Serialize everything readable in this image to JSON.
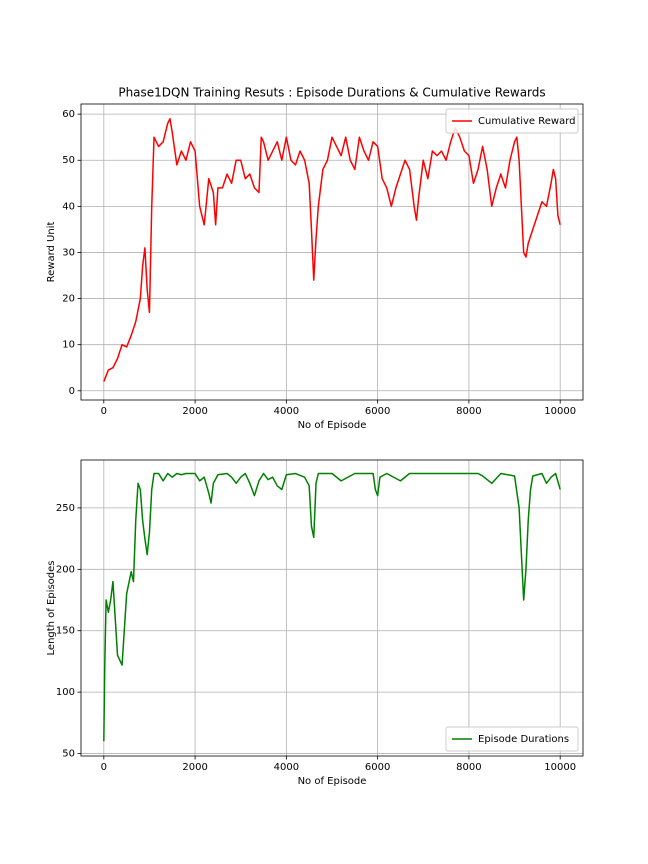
{
  "chart_data": [
    {
      "type": "line",
      "title": "Phase1DQN Training Resuts : Episode Durations & Cumulative Rewards",
      "x_label": "No of Episode",
      "y_label": "Reward Unit",
      "x": [
        0,
        100,
        200,
        300,
        400,
        500,
        600,
        700,
        800,
        850,
        900,
        950,
        1000,
        1050,
        1100,
        1200,
        1300,
        1400,
        1450,
        1500,
        1600,
        1700,
        1800,
        1900,
        2000,
        2100,
        2200,
        2300,
        2400,
        2450,
        2500,
        2600,
        2700,
        2800,
        2900,
        3000,
        3100,
        3200,
        3300,
        3400,
        3450,
        3500,
        3600,
        3700,
        3800,
        3900,
        4000,
        4100,
        4200,
        4300,
        4400,
        4500,
        4550,
        4600,
        4650,
        4700,
        4800,
        4900,
        5000,
        5100,
        5200,
        5300,
        5400,
        5500,
        5600,
        5700,
        5800,
        5900,
        6000,
        6100,
        6200,
        6300,
        6400,
        6500,
        6600,
        6700,
        6800,
        6850,
        6900,
        7000,
        7100,
        7200,
        7300,
        7400,
        7500,
        7600,
        7700,
        7800,
        7900,
        8000,
        8100,
        8200,
        8300,
        8400,
        8500,
        8600,
        8700,
        8800,
        8900,
        9000,
        9050,
        9100,
        9200,
        9250,
        9300,
        9400,
        9500,
        9600,
        9700,
        9800,
        9850,
        9900,
        9950,
        10000
      ],
      "series": [
        {
          "name": "Cumulative Reward",
          "color": "#ff0000",
          "values": [
            2,
            4.5,
            5,
            7,
            10,
            9.5,
            12,
            15,
            20,
            27,
            31,
            22,
            17,
            40,
            55,
            53,
            54,
            58,
            59,
            56,
            49,
            52,
            50,
            54,
            52,
            40,
            36,
            46,
            43,
            36,
            44,
            44,
            47,
            45,
            50,
            50,
            46,
            47,
            44,
            43,
            55,
            54,
            50,
            52,
            54,
            50,
            55,
            50,
            49,
            52,
            50,
            45,
            35,
            24,
            33,
            40,
            48,
            50,
            55,
            53,
            51,
            55,
            50,
            48,
            55,
            52,
            50,
            54,
            53,
            46,
            44,
            40,
            44,
            47,
            50,
            48,
            40,
            37,
            42,
            50,
            46,
            52,
            51,
            52,
            50,
            54,
            57,
            55,
            52,
            51,
            45,
            48,
            53,
            48,
            40,
            44,
            47,
            44,
            50,
            54,
            55,
            50,
            30,
            29,
            32,
            35,
            38,
            41,
            40,
            45,
            48,
            46,
            38,
            36
          ]
        }
      ],
      "xlim": [
        -500,
        10500
      ],
      "ylim": [
        -2,
        62.2
      ],
      "xticks": [
        0,
        2000,
        4000,
        6000,
        8000,
        10000
      ],
      "yticks": [
        0,
        10,
        20,
        30,
        40,
        50,
        60
      ],
      "grid": true,
      "legend": "upper right"
    },
    {
      "type": "line",
      "x_label": "No of Episode",
      "y_label": "Length of Episodes",
      "x": [
        0,
        20,
        50,
        100,
        150,
        200,
        250,
        300,
        400,
        500,
        600,
        650,
        700,
        750,
        800,
        850,
        900,
        950,
        1000,
        1050,
        1100,
        1200,
        1300,
        1400,
        1500,
        1600,
        1700,
        1800,
        2000,
        2100,
        2200,
        2300,
        2350,
        2400,
        2500,
        2700,
        2800,
        2900,
        3000,
        3100,
        3200,
        3300,
        3400,
        3500,
        3600,
        3700,
        3800,
        3900,
        4000,
        4200,
        4400,
        4500,
        4550,
        4600,
        4650,
        4700,
        5000,
        5200,
        5500,
        5900,
        5950,
        6000,
        6050,
        6200,
        6500,
        6700,
        7000,
        8200,
        8300,
        8500,
        8700,
        9000,
        9100,
        9200,
        9250,
        9300,
        9350,
        9400,
        9600,
        9700,
        9800,
        9900,
        10000
      ],
      "series": [
        {
          "name": "Episode Durations",
          "color": "#008000",
          "values": [
            60,
            120,
            175,
            165,
            175,
            190,
            160,
            130,
            122,
            180,
            198,
            190,
            240,
            270,
            265,
            240,
            225,
            212,
            230,
            265,
            278,
            278,
            272,
            278,
            275,
            278,
            277,
            278,
            278,
            272,
            275,
            262,
            254,
            270,
            277,
            278,
            275,
            270,
            275,
            278,
            270,
            260,
            272,
            278,
            273,
            275,
            268,
            265,
            277,
            278,
            275,
            268,
            235,
            226,
            270,
            278,
            278,
            272,
            278,
            278,
            265,
            260,
            275,
            278,
            272,
            278,
            278,
            278,
            276,
            270,
            278,
            276,
            250,
            175,
            200,
            240,
            265,
            276,
            278,
            270,
            275,
            278,
            265
          ]
        }
      ],
      "xlim": [
        -500,
        10500
      ],
      "ylim": [
        48,
        289
      ],
      "xticks": [
        0,
        2000,
        4000,
        6000,
        8000,
        10000
      ],
      "yticks": [
        50,
        100,
        150,
        200,
        250
      ],
      "grid": true,
      "legend": "lower right"
    }
  ]
}
